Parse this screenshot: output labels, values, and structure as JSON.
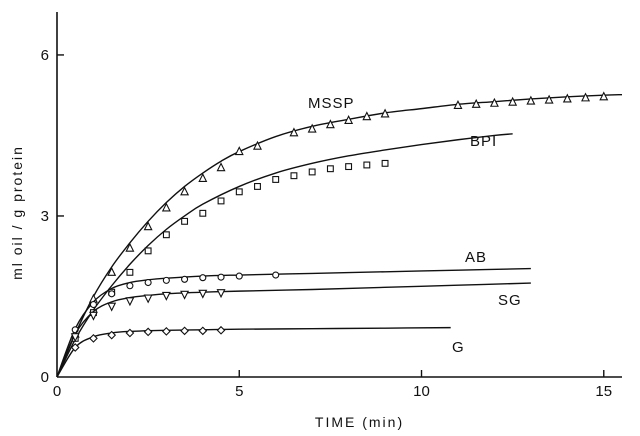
{
  "chart_data": {
    "type": "line",
    "xlabel": "TIME   (min)",
    "ylabel": "ml oil / g protein",
    "xlim": [
      0,
      15.5
    ],
    "ylim": [
      0,
      6.8
    ],
    "xticks": [
      0,
      5,
      10,
      15
    ],
    "yticks": [
      0,
      3,
      6
    ],
    "grid": false,
    "legend": "inline-labels",
    "series": [
      {
        "name": "MSSP",
        "marker": "triangle",
        "curve": [
          [
            0,
            0
          ],
          [
            0.5,
            0.8
          ],
          [
            1,
            1.5
          ],
          [
            1.5,
            2.05
          ],
          [
            2,
            2.5
          ],
          [
            2.5,
            2.9
          ],
          [
            3,
            3.25
          ],
          [
            3.5,
            3.55
          ],
          [
            4,
            3.8
          ],
          [
            4.5,
            4.02
          ],
          [
            5,
            4.2
          ],
          [
            6,
            4.48
          ],
          [
            7,
            4.67
          ],
          [
            8,
            4.8
          ],
          [
            9,
            4.92
          ],
          [
            10,
            5.0
          ],
          [
            11,
            5.08
          ],
          [
            12,
            5.13
          ],
          [
            13,
            5.18
          ],
          [
            14,
            5.22
          ],
          [
            15,
            5.25
          ],
          [
            15.5,
            5.26
          ]
        ],
        "points": [
          [
            0.5,
            0.8
          ],
          [
            1.0,
            1.45
          ],
          [
            1.5,
            1.95
          ],
          [
            2.0,
            2.4
          ],
          [
            2.5,
            2.8
          ],
          [
            3.0,
            3.15
          ],
          [
            3.5,
            3.45
          ],
          [
            4.0,
            3.7
          ],
          [
            4.5,
            3.9
          ],
          [
            5.0,
            4.2
          ],
          [
            5.5,
            4.3
          ],
          [
            6.5,
            4.55
          ],
          [
            7.0,
            4.62
          ],
          [
            7.5,
            4.7
          ],
          [
            8.0,
            4.78
          ],
          [
            8.5,
            4.85
          ],
          [
            9.0,
            4.9
          ],
          [
            11.0,
            5.06
          ],
          [
            11.5,
            5.08
          ],
          [
            12.0,
            5.1
          ],
          [
            12.5,
            5.12
          ],
          [
            13.0,
            5.14
          ],
          [
            13.5,
            5.16
          ],
          [
            14.0,
            5.18
          ],
          [
            14.5,
            5.2
          ],
          [
            15.0,
            5.22
          ]
        ]
      },
      {
        "name": "BPI",
        "marker": "square",
        "curve": [
          [
            0,
            0
          ],
          [
            0.5,
            0.7
          ],
          [
            1,
            1.25
          ],
          [
            1.5,
            1.7
          ],
          [
            2,
            2.1
          ],
          [
            2.5,
            2.45
          ],
          [
            3,
            2.75
          ],
          [
            3.5,
            3.0
          ],
          [
            4,
            3.22
          ],
          [
            5,
            3.55
          ],
          [
            6,
            3.8
          ],
          [
            7,
            3.98
          ],
          [
            8,
            4.12
          ],
          [
            9,
            4.23
          ],
          [
            10,
            4.33
          ],
          [
            11,
            4.42
          ],
          [
            12,
            4.5
          ],
          [
            12.5,
            4.53
          ]
        ],
        "points": [
          [
            0.5,
            0.72
          ],
          [
            1.0,
            1.2
          ],
          [
            1.5,
            1.58
          ],
          [
            2.0,
            1.95
          ],
          [
            2.5,
            2.35
          ],
          [
            3.0,
            2.65
          ],
          [
            3.5,
            2.9
          ],
          [
            4.0,
            3.05
          ],
          [
            4.5,
            3.28
          ],
          [
            5.0,
            3.45
          ],
          [
            5.5,
            3.55
          ],
          [
            6.0,
            3.68
          ],
          [
            6.5,
            3.75
          ],
          [
            7.0,
            3.82
          ],
          [
            7.5,
            3.88
          ],
          [
            8.0,
            3.92
          ],
          [
            8.5,
            3.95
          ],
          [
            9.0,
            3.98
          ]
        ]
      },
      {
        "name": "AB",
        "marker": "circle",
        "curve": [
          [
            0,
            0
          ],
          [
            0.5,
            0.9
          ],
          [
            1,
            1.4
          ],
          [
            1.5,
            1.65
          ],
          [
            2,
            1.76
          ],
          [
            2.5,
            1.81
          ],
          [
            3,
            1.84
          ],
          [
            4,
            1.88
          ],
          [
            5,
            1.9
          ],
          [
            7,
            1.93
          ],
          [
            9,
            1.96
          ],
          [
            11,
            1.99
          ],
          [
            13,
            2.02
          ]
        ],
        "points": [
          [
            0.5,
            0.88
          ],
          [
            1.0,
            1.35
          ],
          [
            1.5,
            1.55
          ],
          [
            2.0,
            1.7
          ],
          [
            2.5,
            1.76
          ],
          [
            3.0,
            1.8
          ],
          [
            3.5,
            1.82
          ],
          [
            4.0,
            1.85
          ],
          [
            4.5,
            1.86
          ],
          [
            5.0,
            1.88
          ],
          [
            6.0,
            1.9
          ]
        ]
      },
      {
        "name": "SG",
        "marker": "inverted-triangle",
        "curve": [
          [
            0,
            0
          ],
          [
            0.5,
            0.8
          ],
          [
            1,
            1.22
          ],
          [
            1.5,
            1.4
          ],
          [
            2,
            1.48
          ],
          [
            2.5,
            1.52
          ],
          [
            3,
            1.55
          ],
          [
            4,
            1.58
          ],
          [
            5,
            1.6
          ],
          [
            7,
            1.63
          ],
          [
            9,
            1.67
          ],
          [
            11,
            1.71
          ],
          [
            13,
            1.75
          ]
        ],
        "points": [
          [
            0.5,
            0.75
          ],
          [
            1.0,
            1.15
          ],
          [
            1.5,
            1.32
          ],
          [
            2.0,
            1.42
          ],
          [
            2.5,
            1.47
          ],
          [
            3.0,
            1.52
          ],
          [
            3.5,
            1.54
          ],
          [
            4.0,
            1.56
          ],
          [
            4.5,
            1.57
          ]
        ]
      },
      {
        "name": "G",
        "marker": "diamond",
        "curve": [
          [
            0,
            0
          ],
          [
            0.5,
            0.55
          ],
          [
            1,
            0.75
          ],
          [
            1.5,
            0.82
          ],
          [
            2,
            0.85
          ],
          [
            3,
            0.87
          ],
          [
            4,
            0.88
          ],
          [
            5,
            0.89
          ],
          [
            7,
            0.9
          ],
          [
            9,
            0.91
          ],
          [
            10.8,
            0.92
          ]
        ],
        "points": [
          [
            0.5,
            0.55
          ],
          [
            1.0,
            0.72
          ],
          [
            1.5,
            0.78
          ],
          [
            2.0,
            0.82
          ],
          [
            2.5,
            0.84
          ],
          [
            3.0,
            0.85
          ],
          [
            3.5,
            0.86
          ],
          [
            4.0,
            0.86
          ],
          [
            4.5,
            0.87
          ]
        ]
      }
    ]
  }
}
